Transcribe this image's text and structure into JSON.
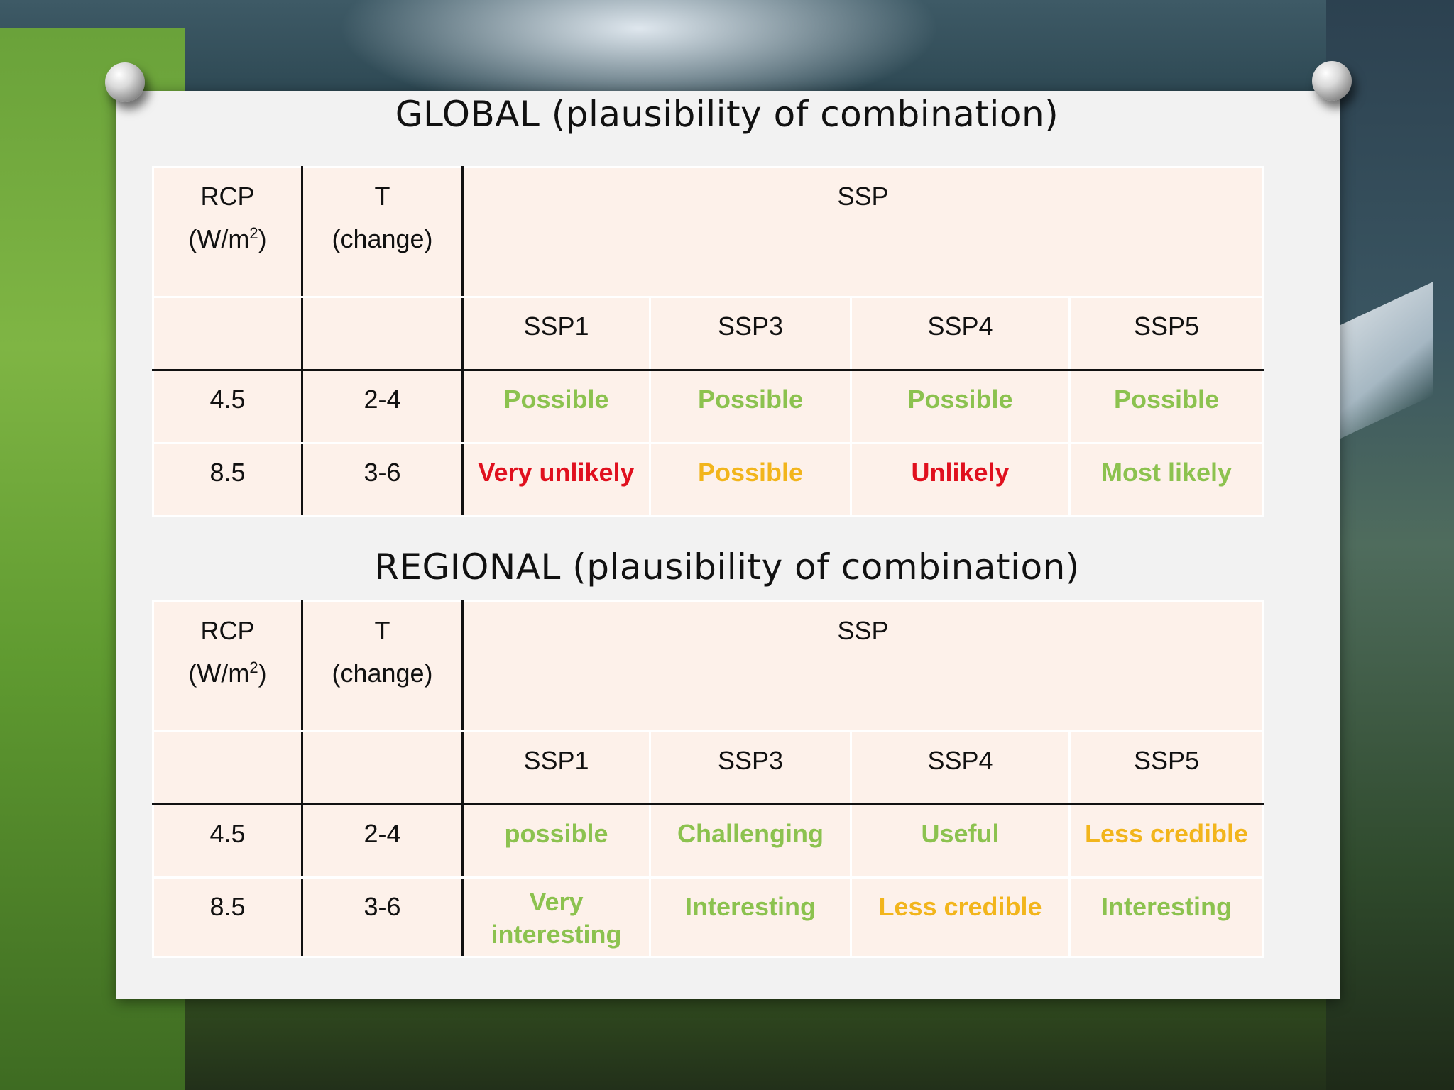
{
  "global": {
    "title": "GLOBAL (plausibility of combination)",
    "header": {
      "rcp_line1": "RCP",
      "rcp_line2_base": "(W/m",
      "rcp_line2_sup": "2",
      "rcp_line2_end": ")",
      "t_line1": "T",
      "t_line2": "(change)",
      "ssp": "SSP"
    },
    "ssp_columns": [
      "SSP1",
      "SSP3",
      "SSP4",
      "SSP5"
    ],
    "rows": [
      {
        "rcp": "4.5",
        "t": "2-4",
        "cells": [
          {
            "text": "Possible",
            "color": "green"
          },
          {
            "text": "Possible",
            "color": "green"
          },
          {
            "text": "Possible",
            "color": "green"
          },
          {
            "text": "Possible",
            "color": "green"
          }
        ]
      },
      {
        "rcp": "8.5",
        "t": "3-6",
        "cells": [
          {
            "text": "Very unlikely",
            "color": "red"
          },
          {
            "text": "Possible",
            "color": "orange"
          },
          {
            "text": "Unlikely",
            "color": "red"
          },
          {
            "text": "Most likely",
            "color": "green"
          }
        ]
      }
    ]
  },
  "regional": {
    "title": "REGIONAL (plausibility of combination)",
    "header": {
      "rcp_line1": "RCP",
      "rcp_line2_base": "(W/m",
      "rcp_line2_sup": "2",
      "rcp_line2_end": ")",
      "t_line1": "T",
      "t_line2": "(change)",
      "ssp": "SSP"
    },
    "ssp_columns": [
      "SSP1",
      "SSP3",
      "SSP4",
      "SSP5"
    ],
    "rows": [
      {
        "rcp": "4.5",
        "t": "2-4",
        "cells": [
          {
            "text": "possible",
            "color": "green"
          },
          {
            "text": "Challenging",
            "color": "green"
          },
          {
            "text": "Useful",
            "color": "green"
          },
          {
            "text": "Less credible",
            "color": "orange"
          }
        ]
      },
      {
        "rcp": "8.5",
        "t": "3-6",
        "cells": [
          {
            "text": "Very interesting",
            "color": "green"
          },
          {
            "text": "Interesting",
            "color": "green"
          },
          {
            "text": "Less credible",
            "color": "orange"
          },
          {
            "text": "Interesting",
            "color": "green"
          }
        ]
      }
    ]
  },
  "colors": {
    "green": "#8cc24f",
    "orange": "#f2b51c",
    "red": "#e0101e",
    "cell_bg": "#fdf1ea",
    "board_bg": "#f2f2f2"
  }
}
